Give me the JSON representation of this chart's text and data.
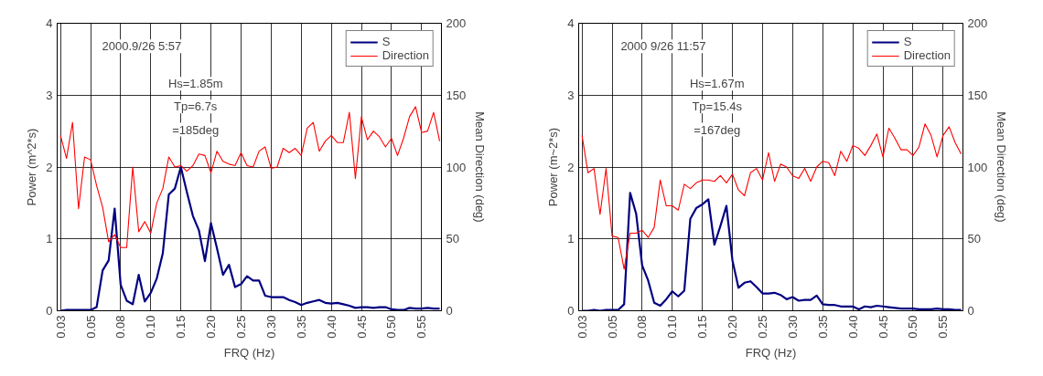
{
  "chart_data": [
    {
      "type": "line",
      "xlabel": "FRQ (Hz)",
      "ylabel": "Power (m^2*s)",
      "y2label": "Mean Direction (deg)",
      "categories": [
        "0.03",
        null,
        null,
        null,
        null,
        "0.05",
        null,
        null,
        null,
        null,
        "0.08",
        null,
        null,
        null,
        null,
        "0.10",
        null,
        null,
        null,
        null,
        "0.15",
        null,
        null,
        null,
        null,
        "0.20",
        null,
        null,
        null,
        null,
        "0.25",
        null,
        null,
        null,
        null,
        "0.30",
        null,
        null,
        null,
        null,
        "0.35",
        null,
        null,
        null,
        null,
        "0.40",
        null,
        null,
        null,
        null,
        "0.45",
        null,
        null,
        null,
        null,
        "0.50",
        null,
        null,
        null,
        null,
        "0.55",
        null,
        null,
        null
      ],
      "series": [
        {
          "name": "S",
          "color": "#000080",
          "values": [
            0,
            0.01,
            0.01,
            0.01,
            0.01,
            0.01,
            0.05,
            0.56,
            0.7,
            1.42,
            0.36,
            0.14,
            0.09,
            0.5,
            0.13,
            0.25,
            0.45,
            0.8,
            1.62,
            1.7,
            2.0,
            1.65,
            1.32,
            1.12,
            0.69,
            1.22,
            0.87,
            0.5,
            0.64,
            0.33,
            0.37,
            0.48,
            0.42,
            0.42,
            0.21,
            0.19,
            0.19,
            0.19,
            0.15,
            0.12,
            0.08,
            0.11,
            0.13,
            0.15,
            0.11,
            0.1,
            0.11,
            0.09,
            0.07,
            0.04,
            0.05,
            0.05,
            0.04,
            0.05,
            0.05,
            0.02,
            0.01,
            0.01,
            0.04,
            0.03,
            0.03,
            0.04,
            0.03,
            0.03
          ]
        },
        {
          "name": "Direction",
          "color": "#ff0000",
          "axis": "y2",
          "values": [
            122,
            106,
            131,
            71,
            107,
            105,
            87,
            72,
            48,
            53,
            44,
            44,
            100,
            55,
            62,
            54,
            75,
            85,
            107,
            100,
            101,
            97,
            101,
            109,
            108,
            96,
            111,
            104,
            102,
            101,
            110,
            101,
            100,
            111,
            114,
            99,
            100,
            113,
            110,
            113,
            108,
            127,
            131,
            111,
            118,
            122,
            117,
            117,
            138,
            92,
            135,
            119,
            125,
            121,
            114,
            120,
            108,
            120,
            135,
            142,
            124,
            125,
            138,
            118
          ]
        }
      ],
      "ylim": [
        0,
        4
      ],
      "yticks": [
        0,
        1,
        2,
        3,
        4
      ],
      "y2lim": [
        0,
        200
      ],
      "y2ticks": [
        0,
        50,
        100,
        150,
        200
      ],
      "grid": true,
      "legend": "top right",
      "annotations": [
        "2000.9/26 5:57",
        "Hs=1.85m",
        "Tp=6.7s",
        "=185deg"
      ]
    },
    {
      "type": "line",
      "xlabel": "FRQ (Hz)",
      "ylabel": "Power (m~2*s)",
      "y2label": "Mean Direction (deg)",
      "categories": [
        "0.03",
        null,
        null,
        null,
        null,
        "0.05",
        null,
        null,
        null,
        null,
        "0.08",
        null,
        null,
        null,
        null,
        "0.10",
        null,
        null,
        null,
        null,
        "0.15",
        null,
        null,
        null,
        null,
        "0.20",
        null,
        null,
        null,
        null,
        "0.25",
        null,
        null,
        null,
        null,
        "0.30",
        null,
        null,
        null,
        null,
        "0.35",
        null,
        null,
        null,
        null,
        "0.40",
        null,
        null,
        null,
        null,
        "0.45",
        null,
        null,
        null,
        null,
        "0.50",
        null,
        null,
        null,
        null,
        "0.55",
        null,
        null,
        null
      ],
      "series": [
        {
          "name": "S",
          "color": "#000080",
          "values": [
            0,
            0,
            0.01,
            0,
            0.01,
            0.01,
            0.01,
            0.09,
            1.64,
            1.35,
            0.63,
            0.42,
            0.11,
            0.07,
            0.16,
            0.27,
            0.2,
            0.28,
            1.28,
            1.43,
            1.48,
            1.55,
            0.92,
            1.18,
            1.46,
            0.7,
            0.32,
            0.39,
            0.41,
            0.33,
            0.24,
            0.24,
            0.25,
            0.22,
            0.16,
            0.19,
            0.14,
            0.15,
            0.15,
            0.21,
            0.09,
            0.08,
            0.08,
            0.06,
            0.06,
            0.06,
            0.02,
            0.06,
            0.05,
            0.07,
            0.06,
            0.05,
            0.04,
            0.03,
            0.03,
            0.03,
            0.02,
            0.02,
            0.02,
            0.03,
            0.02,
            0.02,
            0.01,
            0.01
          ]
        },
        {
          "name": "Direction",
          "color": "#ff0000",
          "axis": "y2",
          "values": [
            122,
            96,
            99,
            67,
            99,
            52,
            51,
            29,
            54,
            54,
            56,
            51,
            58,
            91,
            73,
            73,
            70,
            88,
            85,
            89,
            91,
            91,
            90,
            94,
            89,
            95,
            84,
            80,
            96,
            99,
            91,
            110,
            90,
            102,
            100,
            94,
            92,
            99,
            90,
            100,
            104,
            103,
            94,
            111,
            104,
            115,
            113,
            108,
            115,
            123,
            107,
            127,
            120,
            112,
            112,
            108,
            114,
            130,
            122,
            107,
            122,
            128,
            117,
            109
          ]
        }
      ],
      "ylim": [
        0,
        4
      ],
      "yticks": [
        0,
        1,
        2,
        3,
        4
      ],
      "y2lim": [
        0,
        200
      ],
      "y2ticks": [
        0,
        50,
        100,
        150,
        200
      ],
      "grid": true,
      "legend": "top right",
      "annotations": [
        "2000 9/26 11:57",
        "Hs=1.67m",
        "Tp=15.4s",
        "=167deg"
      ]
    }
  ]
}
